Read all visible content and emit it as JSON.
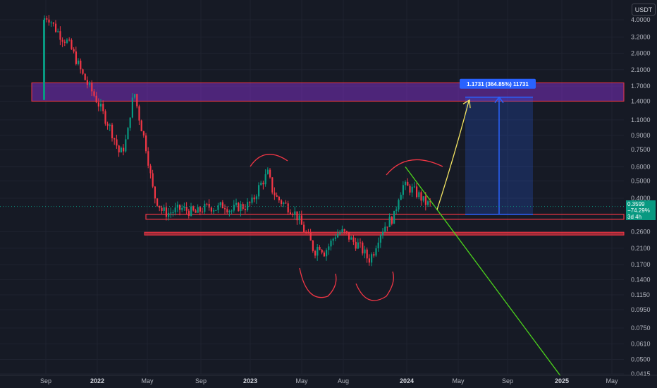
{
  "currency_badge": "USDT",
  "price_scale": {
    "labels": [
      "4.0000",
      "3.2000",
      "2.6000",
      "2.1000",
      "1.7000",
      "1.4000",
      "1.1000",
      "0.9000",
      "0.7500",
      "0.6000",
      "0.5000",
      "0.4000",
      "0.2600",
      "0.2100",
      "0.1700",
      "0.1400",
      "0.1150",
      "0.0950",
      "0.0750",
      "0.0610",
      "0.0500",
      "0.0415"
    ]
  },
  "time_scale": {
    "labels": [
      "Sep",
      "2022",
      "May",
      "Sep",
      "2023",
      "May",
      "Aug",
      "2024",
      "May",
      "Sep",
      "2025",
      "May"
    ]
  },
  "current_price": {
    "value": "0.3599",
    "change": "−74.29%",
    "countdown": "3d 4h",
    "color": "#089981"
  },
  "measure_label": "1.1731 (364.85%) 11731",
  "colors": {
    "up": "#089981",
    "down": "#f23645",
    "zone_fill": "#7b2fbf",
    "zone_border": "#f23645",
    "support": "#f23645",
    "trend_line": "#4cd41c",
    "arrow": "#f5e663",
    "measure": "#2962ff",
    "annotation": "#f23645"
  },
  "chart_data": {
    "type": "candlestick",
    "y_scale": "log",
    "ylim": [
      0.0415,
      4.0
    ],
    "resistance_zone": [
      1.4,
      1.7731
    ],
    "support_levels": [
      0.3,
      0.32,
      0.255
    ],
    "target_price": 1.4731,
    "target_change": "364.85%",
    "close": 0.3599
  }
}
